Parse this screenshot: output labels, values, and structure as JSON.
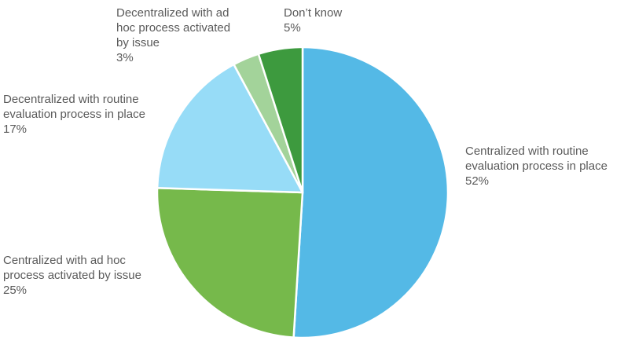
{
  "chart_data": {
    "type": "pie",
    "title": "",
    "start_angle_deg": 0,
    "direction": "clockwise",
    "slices": [
      {
        "name": "Centralized with routine evaluation process in place",
        "lines": [
          "Centralized with routine",
          "evaluation process in place"
        ],
        "value": 52,
        "value_label": "52%",
        "color": "#54b9e6"
      },
      {
        "name": "Centralized with ad hoc process activated by issue",
        "lines": [
          "Centralized with ad hoc",
          "process activated by issue"
        ],
        "value": 25,
        "value_label": "25%",
        "color": "#76b94b"
      },
      {
        "name": "Decentralized with routine evaluation process in place",
        "lines": [
          "Decentralized with routine",
          "evaluation process in place"
        ],
        "value": 17,
        "value_label": "17%",
        "color": "#97dcf7"
      },
      {
        "name": "Decentralized with ad hoc process activated by issue",
        "lines": [
          "Decentralized with ad",
          "hoc process activated",
          "by issue"
        ],
        "value": 3,
        "value_label": "3%",
        "color": "#a3d39a"
      },
      {
        "name": "Don’t know",
        "lines": [
          "Don’t know"
        ],
        "value": 5,
        "value_label": "5%",
        "color": "#3d9a3e"
      }
    ]
  }
}
